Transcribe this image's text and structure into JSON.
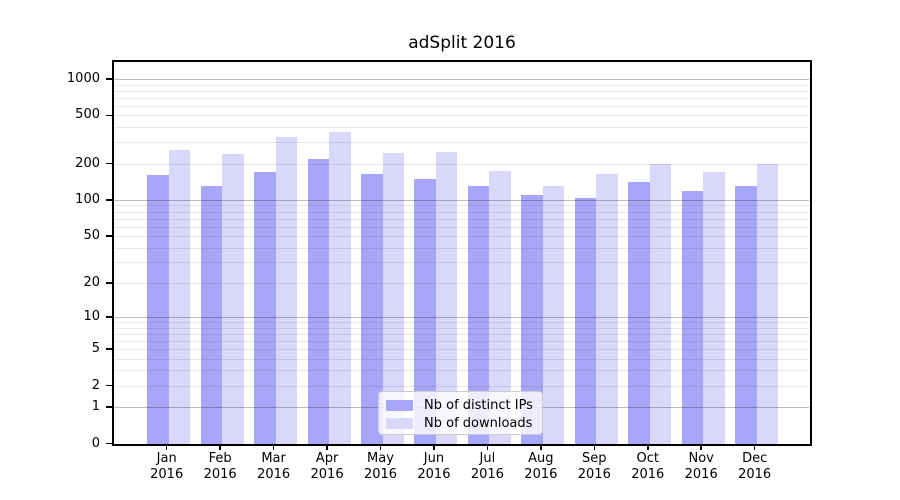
{
  "title": "adSplit 2016",
  "colors": {
    "ips_bar": "#a8a6f8",
    "downloads_bar": "#d9d7fa",
    "major_grid": "rgba(0,0,0,0.26)",
    "minor_grid": "rgba(0,0,0,0.09)",
    "axis": "#000000",
    "legend_border": "#cccccc"
  },
  "legend": {
    "items": [
      {
        "label": "Nb of distinct IPs",
        "color_key": "ips_bar"
      },
      {
        "label": "Nb of downloads",
        "color_key": "downloads_bar"
      }
    ]
  },
  "chart_data": {
    "type": "bar",
    "title": "adSplit 2016",
    "categories": [
      "Jan 2016",
      "Feb 2016",
      "Mar 2016",
      "Apr 2016",
      "May 2016",
      "Jun 2016",
      "Jul 2016",
      "Aug 2016",
      "Sep 2016",
      "Oct 2016",
      "Nov 2016",
      "Dec 2016"
    ],
    "series": [
      {
        "name": "Nb of distinct IPs",
        "values": [
          160,
          130,
          170,
          220,
          165,
          148,
          130,
          110,
          103,
          140,
          118,
          130
        ]
      },
      {
        "name": "Nb of downloads",
        "values": [
          260,
          240,
          330,
          365,
          245,
          248,
          175,
          130,
          165,
          200,
          170,
          200
        ]
      }
    ],
    "xlabel": "",
    "ylabel": "",
    "y_scale": "log10(value+1)",
    "y_ticks": [
      0,
      1,
      2,
      5,
      10,
      20,
      50,
      100,
      200,
      500,
      1000
    ],
    "ylim": [
      0,
      1400
    ],
    "grid": "horizontal major and minor log gridlines",
    "legend_position": "bottom-center inside plot"
  }
}
